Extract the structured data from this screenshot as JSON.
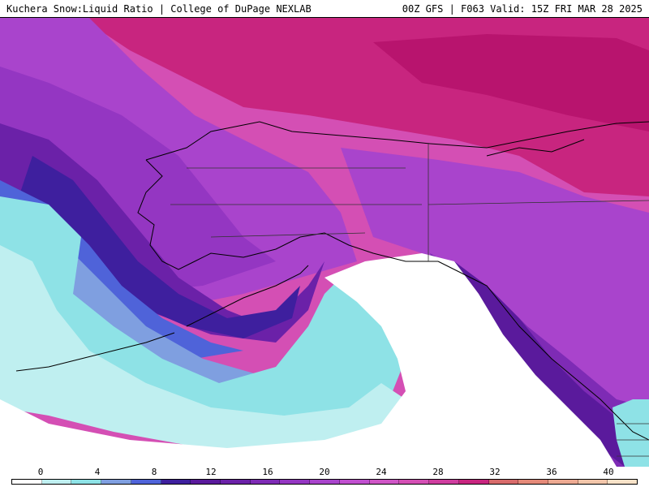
{
  "header": {
    "title_left": "Kuchera Snow:Liquid Ratio | College of DuPage NEXLAB",
    "title_right": "00Z GFS | F063 Valid: 15Z FRI MAR 28 2025"
  },
  "legend": {
    "ticks": [
      "0",
      "4",
      "8",
      "12",
      "16",
      "20",
      "24",
      "28",
      "32",
      "36",
      "40"
    ],
    "colors": [
      "#ffffff",
      "#bfeff0",
      "#8ee2e6",
      "#7f9fe0",
      "#4f63d9",
      "#3e1f9e",
      "#5a1a9c",
      "#6b21a8",
      "#7e2bb5",
      "#9436c2",
      "#a944cc",
      "#c04fcf",
      "#cf55c6",
      "#d44fb4",
      "#cf3d9f",
      "#c8257f",
      "#d86b6b",
      "#e58a79",
      "#edaa92",
      "#f2c6aa",
      "#f8e2c8"
    ]
  },
  "map": {
    "region": "Alaska and northeastern Pacific",
    "ocean_no_data_color": "#ffffff",
    "border_color": "#000000"
  }
}
